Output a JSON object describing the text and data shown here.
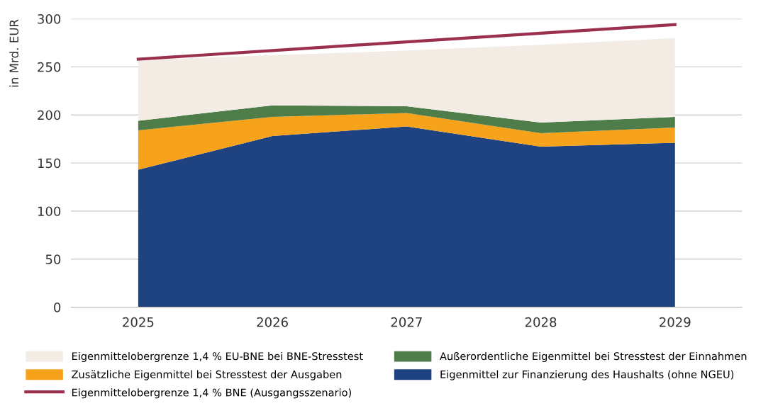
{
  "chart_data": {
    "type": "area",
    "stacked": true,
    "ylabel": "in Mrd. EUR",
    "categories": [
      "2025",
      "2026",
      "2027",
      "2028",
      "2029"
    ],
    "series": [
      {
        "name": "Eigenmittel zur Finanzierung des Haushalts (ohne NGEU)",
        "color": "#1f4280",
        "values": [
          143,
          178,
          188,
          167,
          171
        ]
      },
      {
        "name": "Zusätzliche Eigenmittel bei Stresstest der Ausgaben",
        "color": "#f7a21b",
        "values": [
          41,
          20,
          14,
          14,
          16
        ]
      },
      {
        "name": "Außerordentliche Eigenmittel bei Stresstest der Einnahmen",
        "color": "#4e7d4a",
        "values": [
          10,
          12,
          7,
          11,
          11
        ]
      },
      {
        "name": "Eigenmittelobergrenze 1,4 % EU-BNE bei BNE-Stresstest",
        "color": "#f3ece4",
        "values": [
          63,
          52,
          58,
          81,
          82
        ]
      },
      {
        "name": "Eigenmittelobergrenze 1,4 % BNE (Ausgangsszenario)",
        "type": "line",
        "color": "#9b2f4e",
        "values": [
          258,
          267,
          276,
          285,
          294
        ]
      }
    ],
    "ylim": [
      0,
      300
    ],
    "yticks": [
      0,
      50,
      100,
      150,
      200,
      250,
      300
    ],
    "grid": "y",
    "legend": "bottom",
    "marker": "none",
    "line_style": "solid"
  }
}
